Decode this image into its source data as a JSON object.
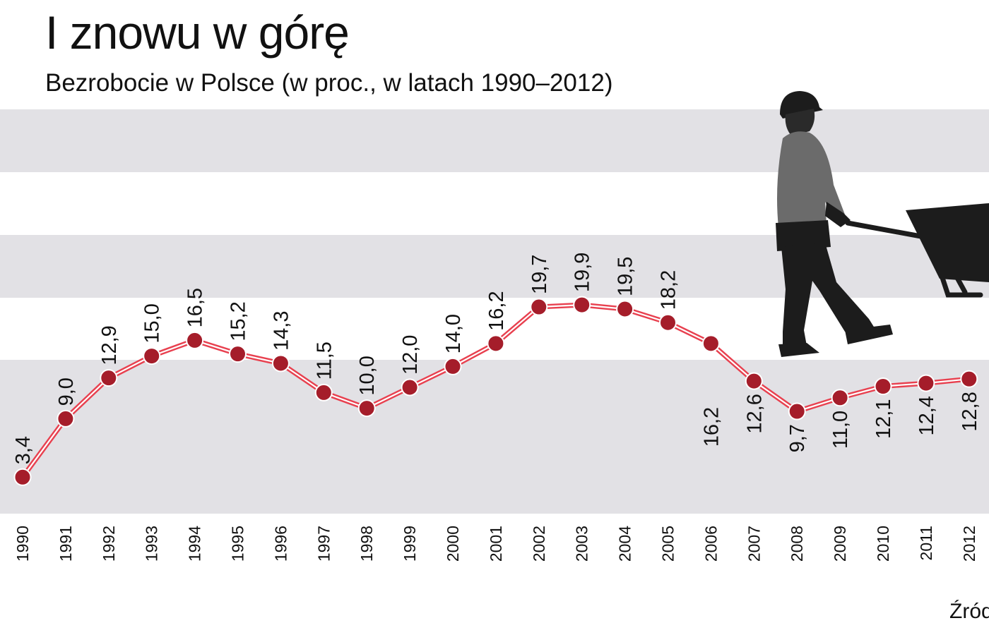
{
  "source_label": "Źród",
  "colors": {
    "band": "#e2e1e5",
    "line": "#e8404f",
    "marker": "#a51d2a",
    "worker_silhouette": "#1c1c1c",
    "worker_shirt": "#6b6b6b"
  },
  "illustration": {
    "icon": "worker-with-wheelbarrow-icon"
  },
  "chart_data": {
    "type": "line",
    "title": "I znowu w górę",
    "subtitle": "Bezrobocie w Polsce (w proc., w latach 1990–2012)",
    "xlabel": "",
    "ylabel": "",
    "grid": "alternating horizontal bands",
    "x": [
      "1990",
      "1991",
      "1992",
      "1993",
      "1994",
      "1995",
      "1996",
      "1997",
      "1998",
      "1999",
      "2000",
      "2001",
      "2002",
      "2003",
      "2004",
      "2005",
      "2006",
      "2007",
      "2008",
      "2009",
      "2010",
      "2011",
      "2012"
    ],
    "series": [
      {
        "values": [
          3.4,
          9.0,
          12.9,
          15.0,
          16.5,
          15.2,
          14.3,
          11.5,
          10.0,
          12.0,
          14.0,
          16.2,
          19.7,
          19.9,
          19.5,
          18.2,
          16.2,
          12.6,
          9.7,
          11.0,
          12.1,
          12.4,
          12.8
        ],
        "labels": [
          "3,4",
          "9,0",
          "12,9",
          "15,0",
          "16,5",
          "15,2",
          "14,3",
          "11,5",
          "10,0",
          "12,0",
          "14,0",
          "16,2",
          "19,7",
          "19,9",
          "19,5",
          "18,2",
          "16,2",
          "12,6",
          "9,7",
          "11,0",
          "12,1",
          "12,4",
          "12,8"
        ]
      }
    ]
  }
}
